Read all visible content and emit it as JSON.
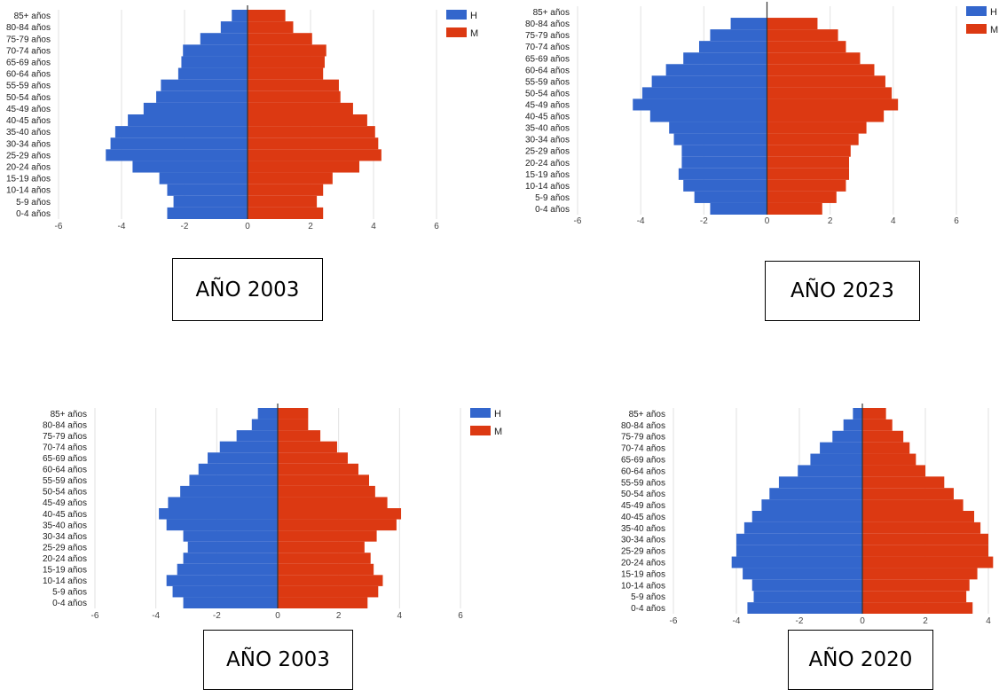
{
  "colors": {
    "H": "#3366cc",
    "M": "#dc3912",
    "grid": "#e2e2e2",
    "axis": "#333333"
  },
  "year_labels": [
    "AÑO 2003",
    "AÑO 2023",
    "AÑO 2003",
    "AÑO 2020"
  ],
  "chart_data": [
    {
      "type": "bar",
      "orientation": "horizontal",
      "categories": [
        "85+ años",
        "80-84 años",
        "75-79 años",
        "70-74 años",
        "65-69 años",
        "60-64 años",
        "55-59 años",
        "50-54 años",
        "45-49 años",
        "40-45 años",
        "35-40 años",
        "30-34 años",
        "25-29 años",
        "20-24 años",
        "15-19 años",
        "10-14 años",
        "5-9 años",
        "0-4 años"
      ],
      "series": [
        {
          "name": "H",
          "values": [
            -0.5,
            -0.85,
            -1.5,
            -2.05,
            -2.1,
            -2.2,
            -2.75,
            -2.9,
            -3.3,
            -3.8,
            -4.2,
            -4.35,
            -4.5,
            -3.65,
            -2.8,
            -2.55,
            -2.35,
            -2.55
          ]
        },
        {
          "name": "M",
          "values": [
            1.2,
            1.45,
            2.05,
            2.5,
            2.45,
            2.4,
            2.9,
            2.95,
            3.35,
            3.8,
            4.05,
            4.15,
            4.25,
            3.55,
            2.7,
            2.4,
            2.2,
            2.4
          ]
        }
      ],
      "xticks": [
        "-6",
        "-4",
        "-2",
        "0",
        "2",
        "4",
        "6"
      ],
      "xlim": [
        -6,
        6
      ],
      "grid": true,
      "legend": "top-right"
    },
    {
      "type": "bar",
      "orientation": "horizontal",
      "categories": [
        "85+ años",
        "80-84 años",
        "75-79 años",
        "70-74 años",
        "65-69 años",
        "60-64 años",
        "55-59 años",
        "50-54 años",
        "45-49 años",
        "40-45 años",
        "35-40 años",
        "30-34 años",
        "25-29 años",
        "20-24 años",
        "15-19 años",
        "10-14 años",
        "5-9 años",
        "0-4 años"
      ],
      "series": [
        {
          "name": "H",
          "values": [
            0,
            -1.15,
            -1.8,
            -2.15,
            -2.65,
            -3.2,
            -3.65,
            -3.95,
            -4.25,
            -3.7,
            -3.1,
            -2.95,
            -2.7,
            -2.7,
            -2.8,
            -2.65,
            -2.3,
            -1.8
          ]
        },
        {
          "name": "M",
          "values": [
            0,
            1.6,
            2.25,
            2.5,
            2.95,
            3.4,
            3.75,
            3.95,
            4.15,
            3.7,
            3.15,
            2.9,
            2.65,
            2.6,
            2.6,
            2.5,
            2.2,
            1.75
          ]
        }
      ],
      "xticks": [
        "-6",
        "-4",
        "-2",
        "0",
        "2",
        "4",
        "6"
      ],
      "xlim": [
        -6,
        6
      ],
      "grid": true,
      "legend": "top-right"
    },
    {
      "type": "bar",
      "orientation": "horizontal",
      "categories": [
        "85+ años",
        "80-84 años",
        "75-79 años",
        "70-74 años",
        "65-69 años",
        "60-64 años",
        "55-59 años",
        "50-54 años",
        "45-49 años",
        "40-45 años",
        "35-40 años",
        "30-34 años",
        "25-29 años",
        "20-24 años",
        "15-19 años",
        "10-14 años",
        "5-9 años",
        "0-4 años"
      ],
      "series": [
        {
          "name": "H",
          "values": [
            -0.65,
            -0.85,
            -1.35,
            -1.9,
            -2.3,
            -2.6,
            -2.9,
            -3.2,
            -3.6,
            -3.9,
            -3.65,
            -3.1,
            -2.95,
            -3.1,
            -3.3,
            -3.65,
            -3.45,
            -3.1
          ]
        },
        {
          "name": "M",
          "values": [
            1.0,
            1.0,
            1.4,
            1.95,
            2.3,
            2.65,
            3.0,
            3.2,
            3.6,
            4.05,
            3.9,
            3.25,
            2.85,
            3.05,
            3.15,
            3.45,
            3.3,
            2.95
          ]
        }
      ],
      "xticks": [
        "-6",
        "-4",
        "-2",
        "0",
        "2",
        "4",
        "6"
      ],
      "xlim": [
        -6,
        6
      ],
      "grid": true,
      "legend": "top-right"
    },
    {
      "type": "bar",
      "orientation": "horizontal",
      "categories": [
        "85+ años",
        "80-84 años",
        "75-79 años",
        "70-74 años",
        "65-69 años",
        "60-64 años",
        "55-59 años",
        "50-54 años",
        "45-49 años",
        "40-45 años",
        "35-40 años",
        "30-34 años",
        "25-29 años",
        "20-24 años",
        "15-19 años",
        "10-14 años",
        "5-9 años",
        "0-4 años"
      ],
      "series": [
        {
          "name": "H",
          "values": [
            -0.3,
            -0.6,
            -0.95,
            -1.35,
            -1.65,
            -2.05,
            -2.65,
            -2.95,
            -3.2,
            -3.5,
            -3.75,
            -4.0,
            -4.0,
            -4.15,
            -3.8,
            -3.5,
            -3.45,
            -3.65
          ]
        },
        {
          "name": "M",
          "values": [
            0.75,
            0.95,
            1.3,
            1.5,
            1.7,
            2.0,
            2.6,
            2.9,
            3.2,
            3.55,
            3.75,
            4.0,
            4.0,
            4.15,
            3.65,
            3.4,
            3.3,
            3.5
          ]
        }
      ],
      "xticks": [
        "-6",
        "-4",
        "-2",
        "0",
        "2",
        "4"
      ],
      "xlim": [
        -6,
        4
      ],
      "grid": true,
      "legend": "none"
    }
  ]
}
